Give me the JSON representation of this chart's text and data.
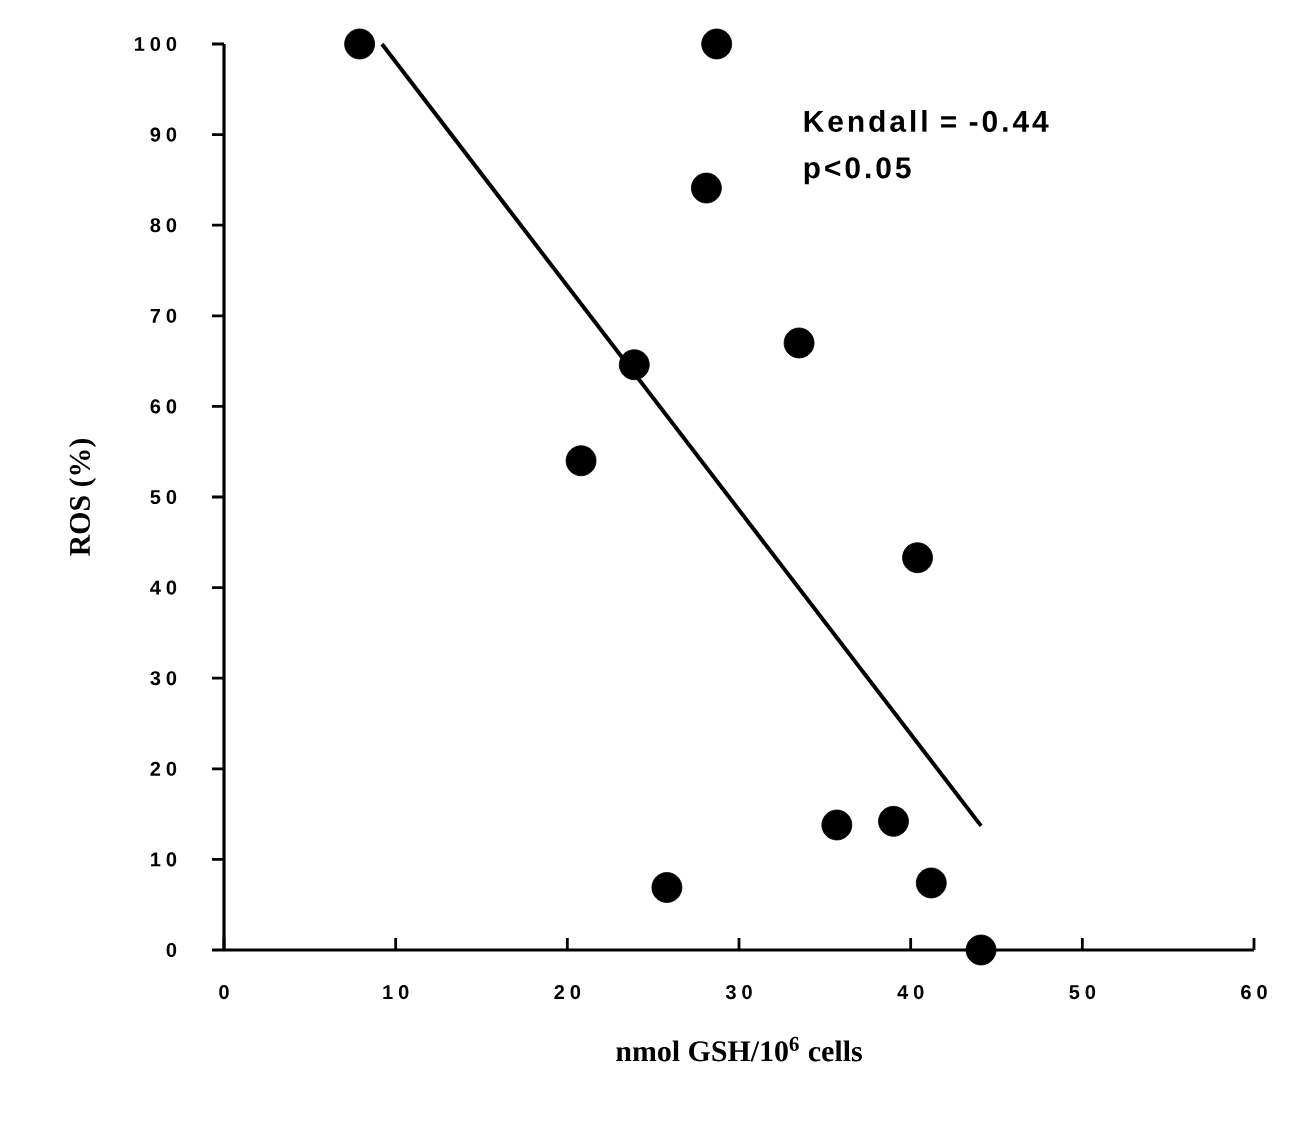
{
  "chart_data": {
    "type": "scatter",
    "xlabel": "nmol GSH/10$^{6}$ cells",
    "ylabel": "ROS (%)",
    "xlim": [
      0,
      60
    ],
    "ylim": [
      0,
      100
    ],
    "xticks": [
      0,
      10,
      20,
      30,
      40,
      50,
      60
    ],
    "yticks": [
      0,
      10,
      20,
      30,
      40,
      50,
      60,
      70,
      80,
      90,
      100
    ],
    "annotations": [
      "Kendall = -0.44",
      "p<0.05"
    ],
    "series": [
      {
        "marker": "circle",
        "color": "#000000",
        "x": [
          7.9,
          28.7,
          28.1,
          33.5,
          23.9,
          20.8,
          40.4,
          35.7,
          39.0,
          25.8,
          41.2,
          44.1
        ],
        "values": [
          100,
          100,
          84.1,
          67,
          64.6,
          54,
          43.3,
          13.8,
          14.2,
          6.9,
          7.4,
          0
        ]
      },
      {
        "type": "line",
        "marker": "none",
        "color": "#000000",
        "x": [
          9.2,
          44.1
        ],
        "values": [
          100,
          13.7
        ]
      }
    ]
  }
}
